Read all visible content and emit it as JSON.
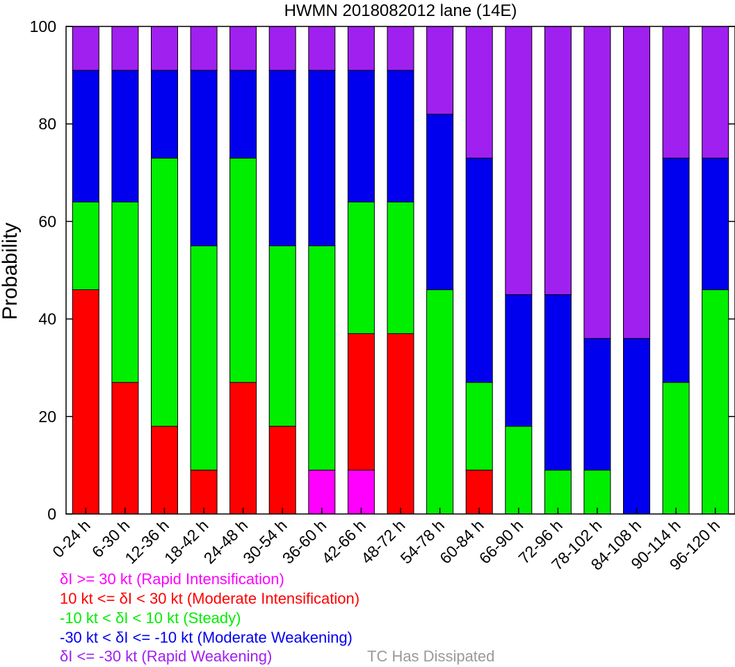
{
  "colors": {
    "rapid_intensification": "#ff00ff",
    "moderate_intensification": "#ff0000",
    "steady": "#00ee00",
    "moderate_weakening": "#0000ee",
    "rapid_weakening": "#a020f0",
    "dissipated": "#999999"
  },
  "legend": {
    "rapid_intensification": "δI >= 30 kt (Rapid Intensification)",
    "moderate_intensification": "10 kt <= δI < 30 kt (Moderate Intensification)",
    "steady": "-10 kt < δI < 10 kt (Steady)",
    "moderate_weakening": "-30 kt < δI <= -10 kt (Moderate Weakening)",
    "rapid_weakening": "δI <= -30 kt (Rapid Weakening)",
    "dissipated": "TC Has Dissipated"
  },
  "chart_data": {
    "type": "bar",
    "stacked": true,
    "title": "HWMN 2018082012 lane (14E)",
    "ylabel": "Probability",
    "xlabel": "",
    "ylim": [
      0,
      100
    ],
    "yticks": [
      0,
      20,
      40,
      60,
      80,
      100
    ],
    "categories": [
      "0-24 h",
      "6-30 h",
      "12-36 h",
      "18-42 h",
      "24-48 h",
      "30-54 h",
      "36-60 h",
      "42-66 h",
      "48-72 h",
      "54-78 h",
      "60-84 h",
      "66-90 h",
      "72-96 h",
      "78-102 h",
      "84-108 h",
      "90-114 h",
      "96-120 h"
    ],
    "series": [
      {
        "key": "rapid_intensification",
        "values": [
          0,
          0,
          0,
          0,
          0,
          0,
          9,
          9,
          0,
          0,
          0,
          0,
          0,
          0,
          0,
          0,
          0
        ]
      },
      {
        "key": "moderate_intensification",
        "values": [
          46,
          27,
          18,
          9,
          27,
          18,
          0,
          28,
          37,
          0,
          9,
          0,
          0,
          0,
          0,
          0,
          0
        ]
      },
      {
        "key": "steady",
        "values": [
          18,
          37,
          55,
          46,
          46,
          37,
          46,
          27,
          27,
          46,
          18,
          18,
          9,
          9,
          0,
          27,
          46
        ]
      },
      {
        "key": "moderate_weakening",
        "values": [
          27,
          27,
          18,
          36,
          18,
          36,
          36,
          27,
          27,
          36,
          46,
          27,
          36,
          27,
          36,
          46,
          27
        ]
      },
      {
        "key": "rapid_weakening",
        "values": [
          9,
          9,
          9,
          9,
          9,
          9,
          9,
          9,
          9,
          18,
          27,
          55,
          55,
          64,
          64,
          27,
          27
        ]
      }
    ]
  }
}
